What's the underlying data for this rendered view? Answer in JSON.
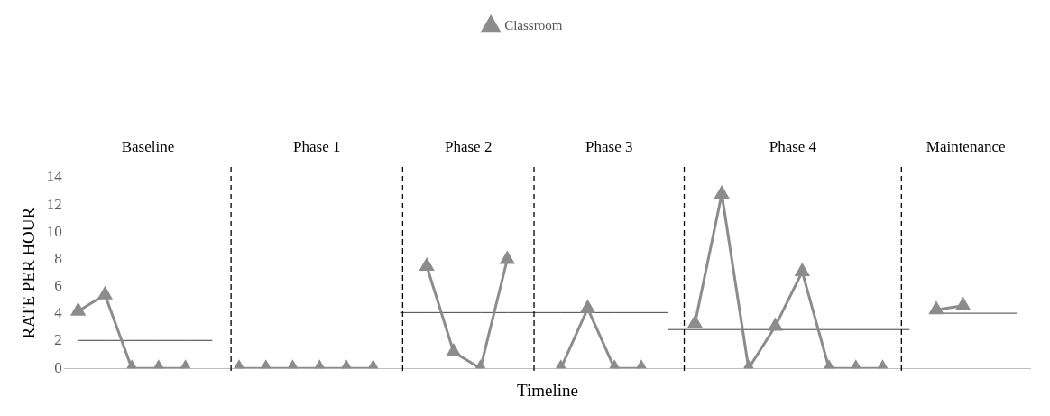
{
  "chart_data": {
    "type": "line",
    "xlabel": "Timeline",
    "ylabel": "RATE PER HOUR",
    "categories": [
      null,
      null,
      null,
      null,
      null,
      null,
      null,
      null,
      null,
      null,
      null,
      null,
      null,
      null,
      null,
      null,
      null,
      null,
      null,
      null,
      null,
      null,
      null,
      null,
      null,
      null,
      null,
      null,
      null,
      null,
      null,
      null,
      null,
      null,
      null,
      null
    ],
    "ylim": [
      0,
      14
    ],
    "yticks": [
      0,
      2,
      4,
      6,
      8,
      10,
      12,
      14
    ],
    "tick_labels": "y",
    "legend": "top",
    "marker": "triangle",
    "line_style": "solid",
    "annotations": [
      "Baseline",
      "Phase 1",
      "Phase 2",
      "Phase 3",
      "Phase 4",
      "Maintenance"
    ],
    "series": [
      {
        "name": "Classroom",
        "color": "#8c8c8c",
        "values": [
          4.2,
          5.4,
          0,
          0,
          0,
          null,
          0,
          0,
          0,
          0,
          0,
          0,
          null,
          7.5,
          1.2,
          0,
          8,
          null,
          0,
          4.4,
          0,
          0,
          null,
          3.3,
          12.8,
          0,
          3.1,
          7.1,
          0,
          0,
          0,
          null,
          4.3,
          4.6,
          null,
          null
        ]
      },
      {
        "color": "#404040",
        "marker": "none",
        "values": [
          2.05,
          2.05,
          2.05,
          2.05,
          2.05,
          2.05,
          null,
          null,
          null,
          null,
          null,
          null,
          null,
          null,
          null,
          null,
          null,
          null,
          null,
          null,
          null,
          null,
          null,
          null,
          null,
          null,
          null,
          null,
          null,
          null,
          null,
          null,
          null,
          null,
          null,
          null
        ]
      },
      {
        "color": "#404040",
        "marker": "none",
        "values": [
          null,
          null,
          null,
          null,
          null,
          null,
          null,
          null,
          null,
          null,
          null,
          null,
          4.1,
          4.1,
          4.1,
          4.1,
          4.1,
          4.1,
          4.1,
          4.1,
          4.1,
          4.1,
          4.1,
          null,
          null,
          null,
          null,
          null,
          null,
          null,
          null,
          null,
          null,
          null,
          null,
          null
        ]
      },
      {
        "color": "#404040",
        "marker": "none",
        "values": [
          null,
          null,
          null,
          null,
          null,
          null,
          null,
          null,
          null,
          null,
          null,
          null,
          null,
          null,
          null,
          null,
          null,
          null,
          null,
          null,
          null,
          null,
          2.85,
          2.85,
          2.85,
          2.85,
          2.85,
          2.85,
          2.85,
          2.85,
          2.85,
          2.85,
          null,
          null,
          null,
          null
        ]
      },
      {
        "color": "#404040",
        "marker": "none",
        "values": [
          null,
          null,
          null,
          null,
          null,
          null,
          null,
          null,
          null,
          null,
          null,
          null,
          null,
          null,
          null,
          null,
          null,
          null,
          null,
          null,
          null,
          null,
          null,
          null,
          null,
          null,
          null,
          null,
          null,
          null,
          null,
          null,
          4.05,
          4.05,
          4.05,
          4.05
        ]
      }
    ]
  }
}
